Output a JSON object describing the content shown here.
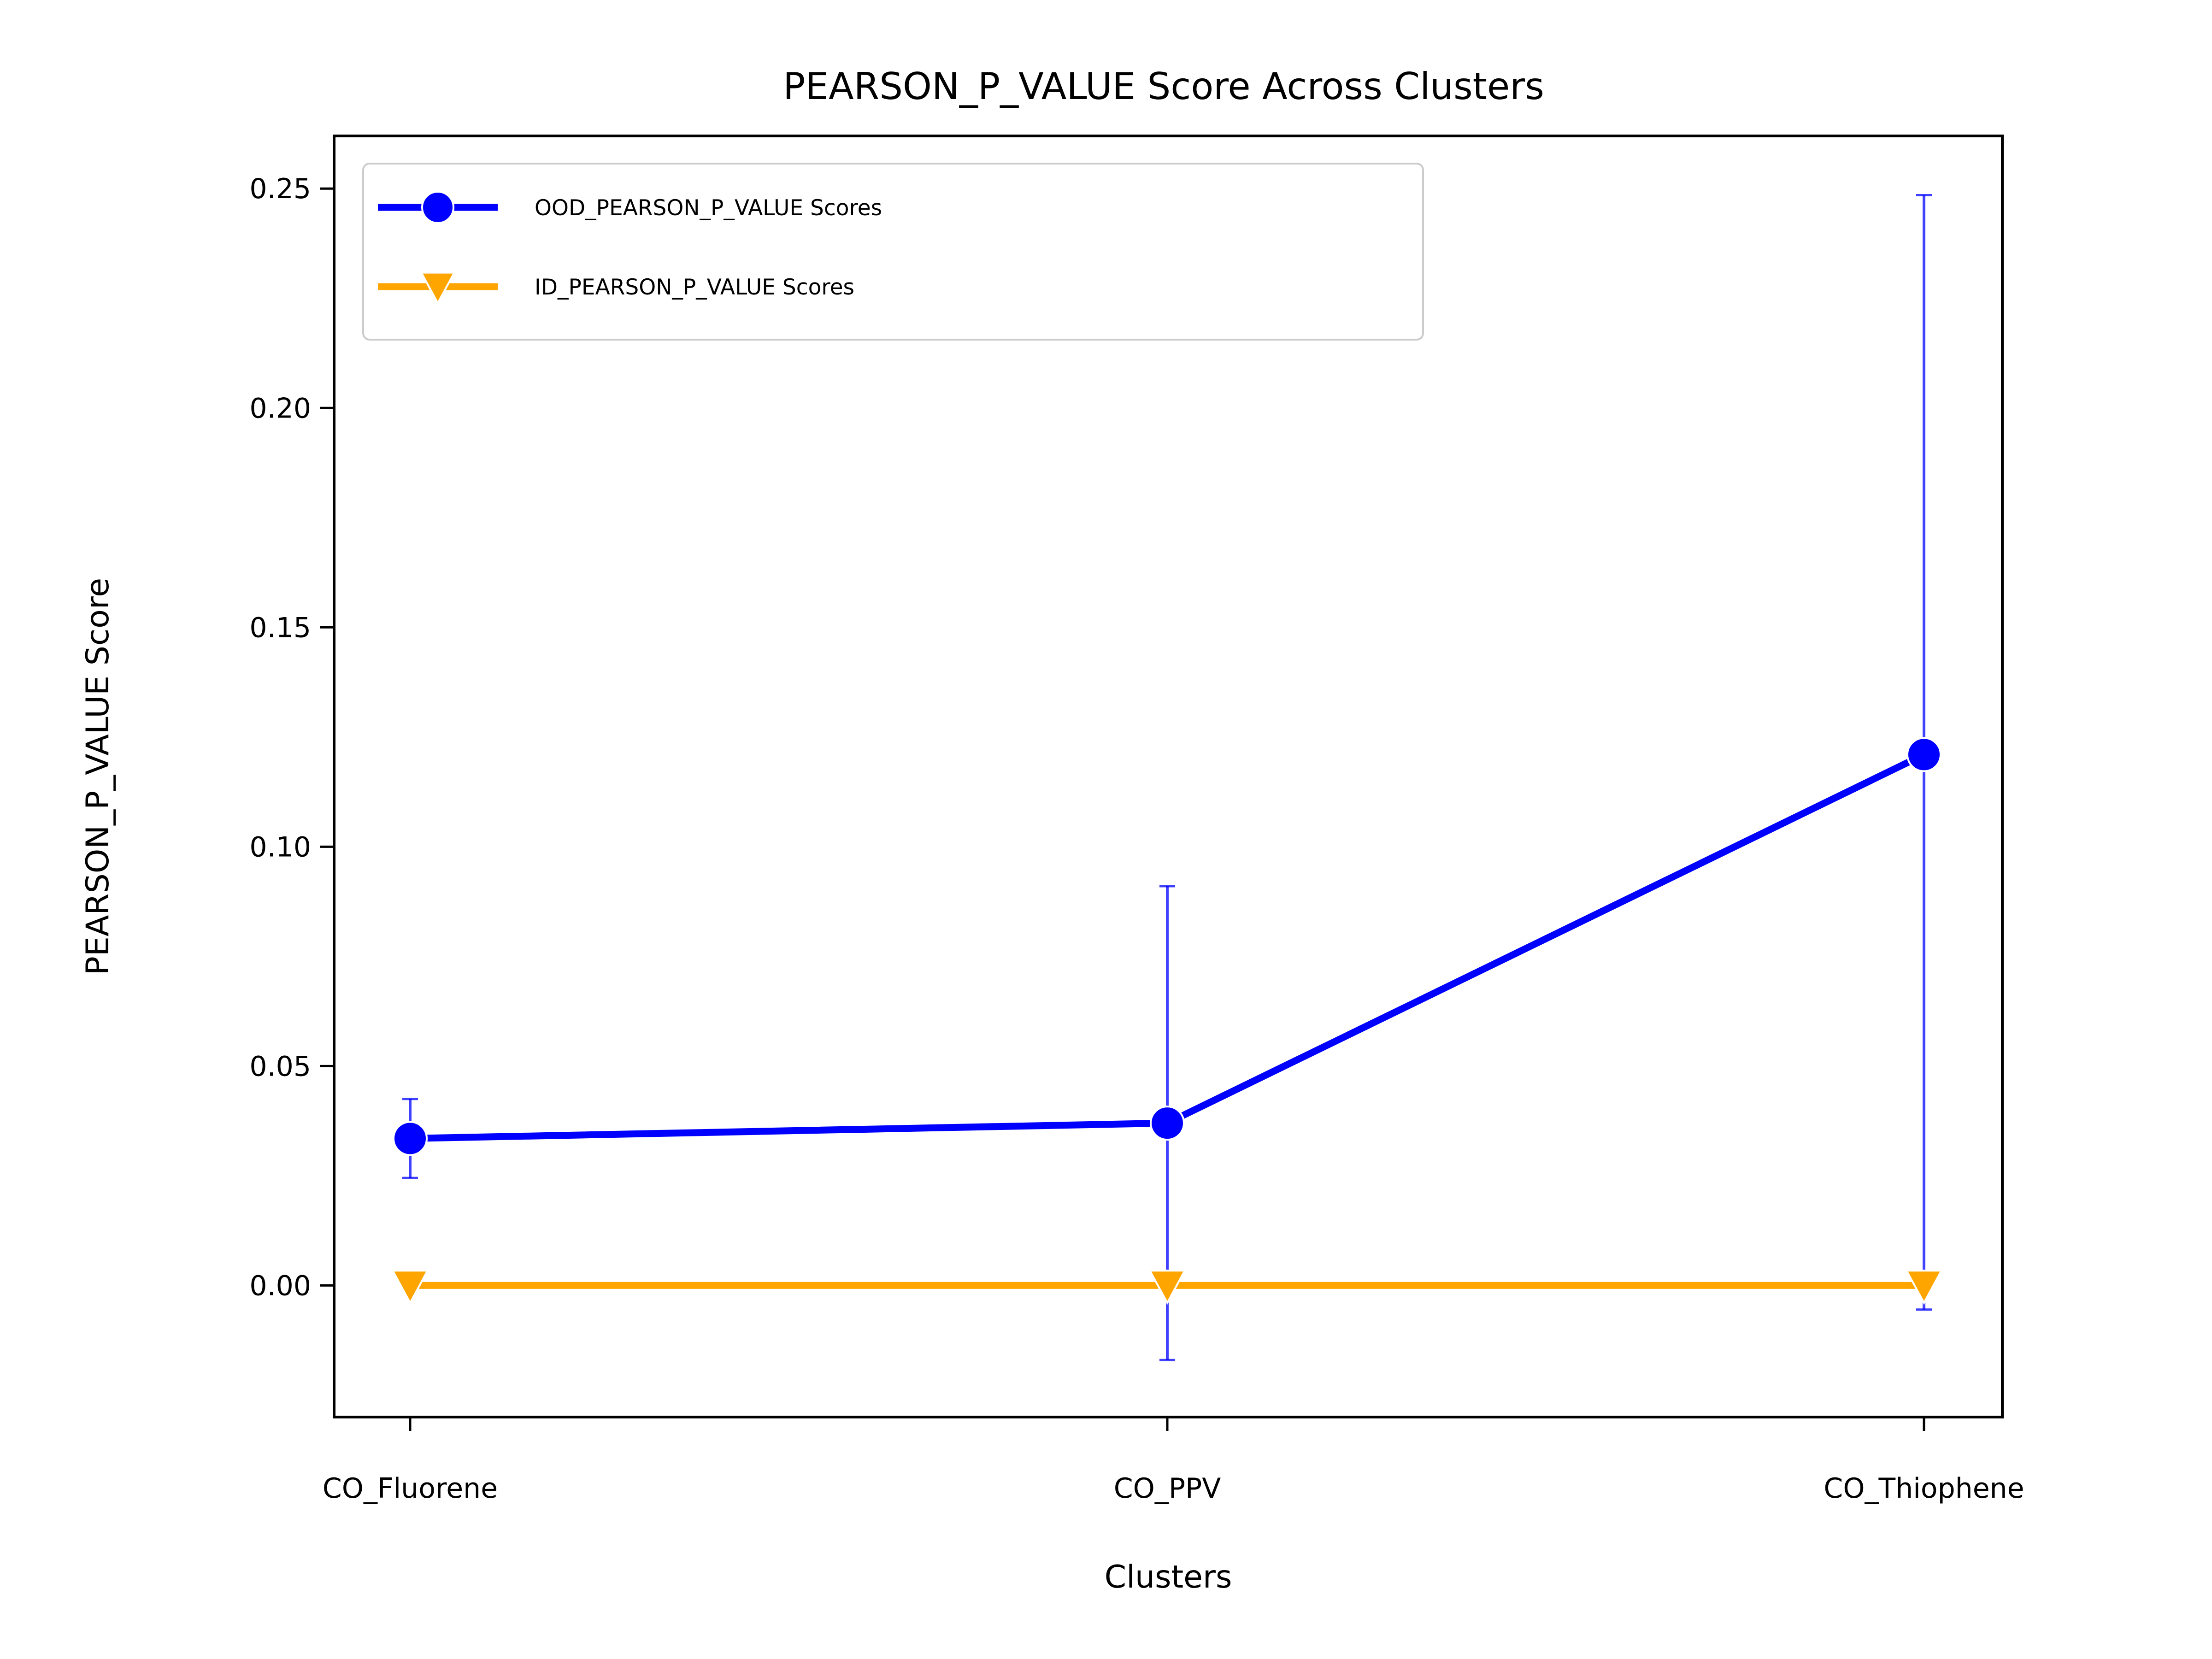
{
  "chart_data": {
    "type": "line",
    "title": "PEARSON_P_VALUE Score Across Clusters",
    "xlabel": "Clusters",
    "ylabel": "PEARSON_P_VALUE Score",
    "categories": [
      "CO_Fluorene",
      "CO_PPV",
      "CO_Thiophene"
    ],
    "ylim": [
      -0.03,
      0.262
    ],
    "yticks": [
      0.0,
      0.05,
      0.1,
      0.15,
      0.2,
      0.25
    ],
    "ytick_labels": [
      "0.00",
      "0.05",
      "0.10",
      "0.15",
      "0.20",
      "0.25"
    ],
    "grid": false,
    "legend_position": "upper-left",
    "series": [
      {
        "name": "OOD_PEARSON_P_VALUE Scores",
        "color": "#0000ff",
        "marker": "circle",
        "values": [
          0.0335,
          0.037,
          0.121
        ],
        "error_low": [
          0.0245,
          -0.017,
          -0.0055
        ],
        "error_high": [
          0.0425,
          0.091,
          0.2485
        ]
      },
      {
        "name": "ID_PEARSON_P_VALUE Scores",
        "color": "#ffa500",
        "marker": "triangle-down",
        "values": [
          0.0,
          0.0,
          0.0
        ]
      }
    ]
  }
}
